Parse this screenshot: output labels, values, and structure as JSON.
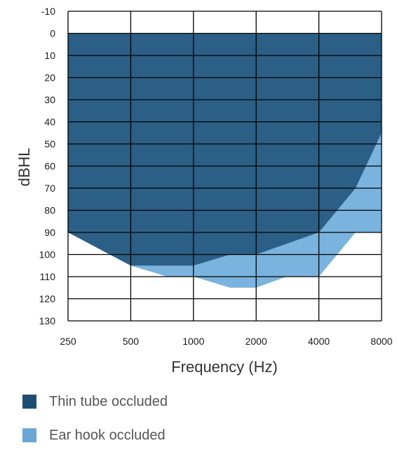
{
  "chart_data": {
    "type": "area",
    "xlabel": "Frequency (Hz)",
    "ylabel": "dBHL",
    "x_categories": [
      "250",
      "500",
      "1000",
      "2000",
      "4000",
      "8000"
    ],
    "x_scale": "log2",
    "y_ticks": [
      "-10",
      "0",
      "10",
      "20",
      "30",
      "40",
      "50",
      "60",
      "70",
      "80",
      "90",
      "100",
      "110",
      "120",
      "130"
    ],
    "ylim": [
      -10,
      130
    ],
    "y_inverted": true,
    "grid": true,
    "series": [
      {
        "name": "Thin tube occluded",
        "color": "#2b5f86",
        "upper": 0,
        "points": [
          [
            250,
            90
          ],
          [
            500,
            105
          ],
          [
            1000,
            105
          ],
          [
            1500,
            100
          ],
          [
            2000,
            100
          ],
          [
            4000,
            90
          ],
          [
            6000,
            70
          ],
          [
            8000,
            45
          ]
        ]
      },
      {
        "name": "Ear hook occluded",
        "color": "#7ab4de",
        "upper": 0,
        "points": [
          [
            250,
            90
          ],
          [
            500,
            105
          ],
          [
            750,
            110
          ],
          [
            1000,
            110
          ],
          [
            1500,
            115
          ],
          [
            2000,
            115
          ],
          [
            2800,
            110
          ],
          [
            4000,
            110
          ],
          [
            6000,
            90
          ],
          [
            8000,
            90
          ]
        ]
      }
    ]
  },
  "legend": {
    "items": [
      {
        "label": "Thin tube occluded",
        "color": "#1f4e74"
      },
      {
        "label": "Ear hook occluded",
        "color": "#6aa6d6"
      }
    ]
  }
}
